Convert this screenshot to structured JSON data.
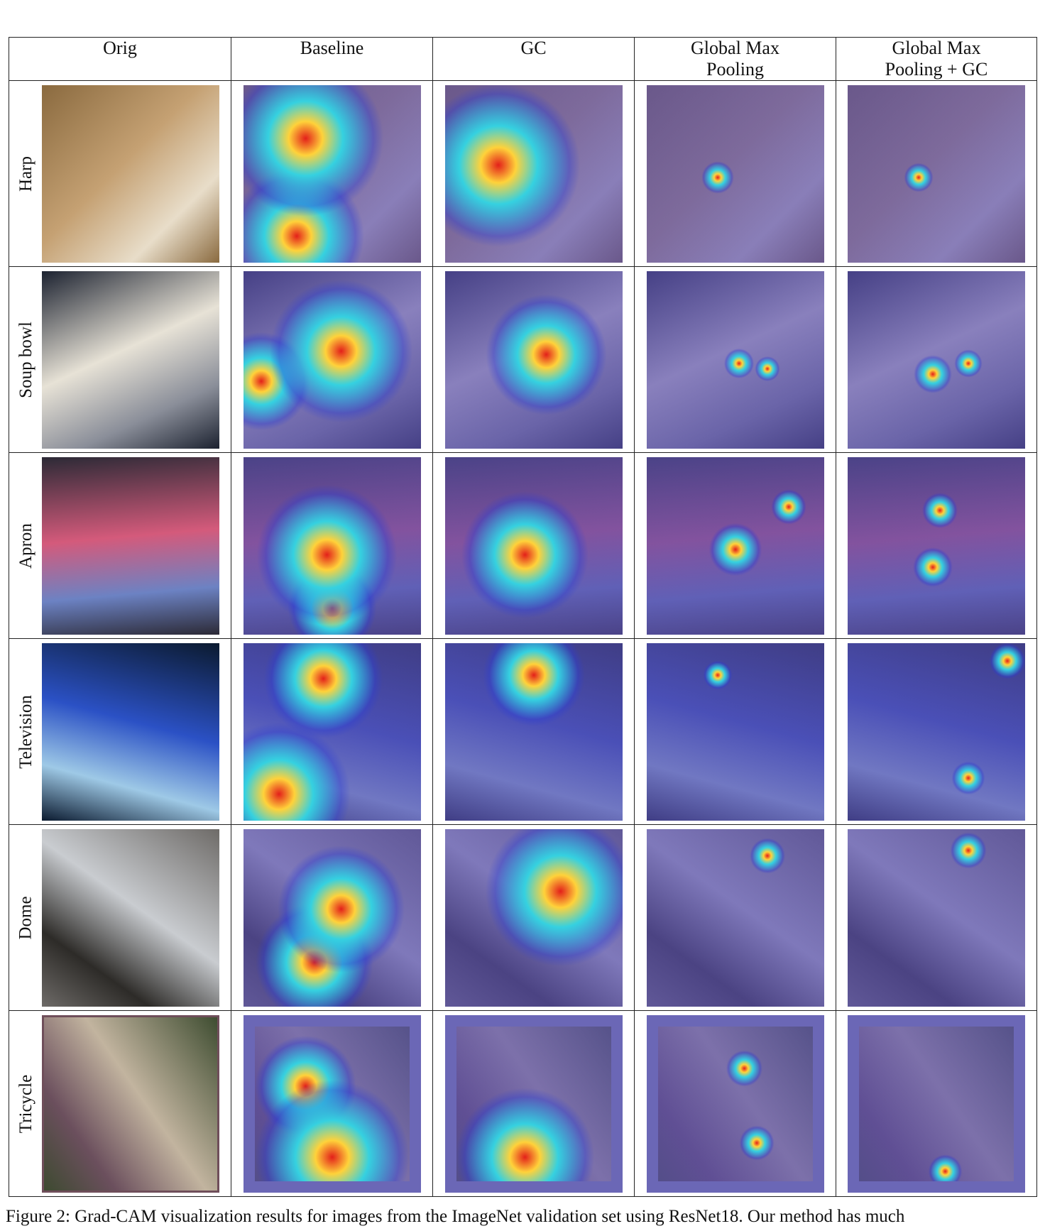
{
  "columns": [
    "Orig",
    "Baseline",
    "GC",
    "Global Max\nPooling",
    "Global Max\nPooling + GC"
  ],
  "rows": [
    {
      "label": "Harp",
      "palette": [
        "#8a6a3f",
        "#c5a173",
        "#e8ddc9"
      ]
    },
    {
      "label": "Soup bowl",
      "palette": [
        "#1c2230",
        "#e7e2d6",
        "#8a8e99"
      ]
    },
    {
      "label": "Apron",
      "palette": [
        "#2c2a36",
        "#d45a7b",
        "#6c82c3"
      ]
    },
    {
      "label": "Television",
      "palette": [
        "#0b1a2f",
        "#2b51c5",
        "#9ec9e6"
      ]
    },
    {
      "label": "Dome",
      "palette": [
        "#6e6b68",
        "#c9ccd0",
        "#2d2b28"
      ]
    },
    {
      "label": "Tricycle",
      "palette": [
        "#3b4a2e",
        "#c2b49f",
        "#6b4f5d"
      ]
    }
  ],
  "colors": {
    "overlay_base": "#5a4fb0",
    "heat_low": "#2b3dd4",
    "heat_mid": "#35d1e0",
    "heat_high": "#ffd23a",
    "heat_peak": "#e3201a"
  },
  "caption": "Figure 2: Grad-CAM visualization results for images from the ImageNet validation set using ResNet18. Our method has much"
}
